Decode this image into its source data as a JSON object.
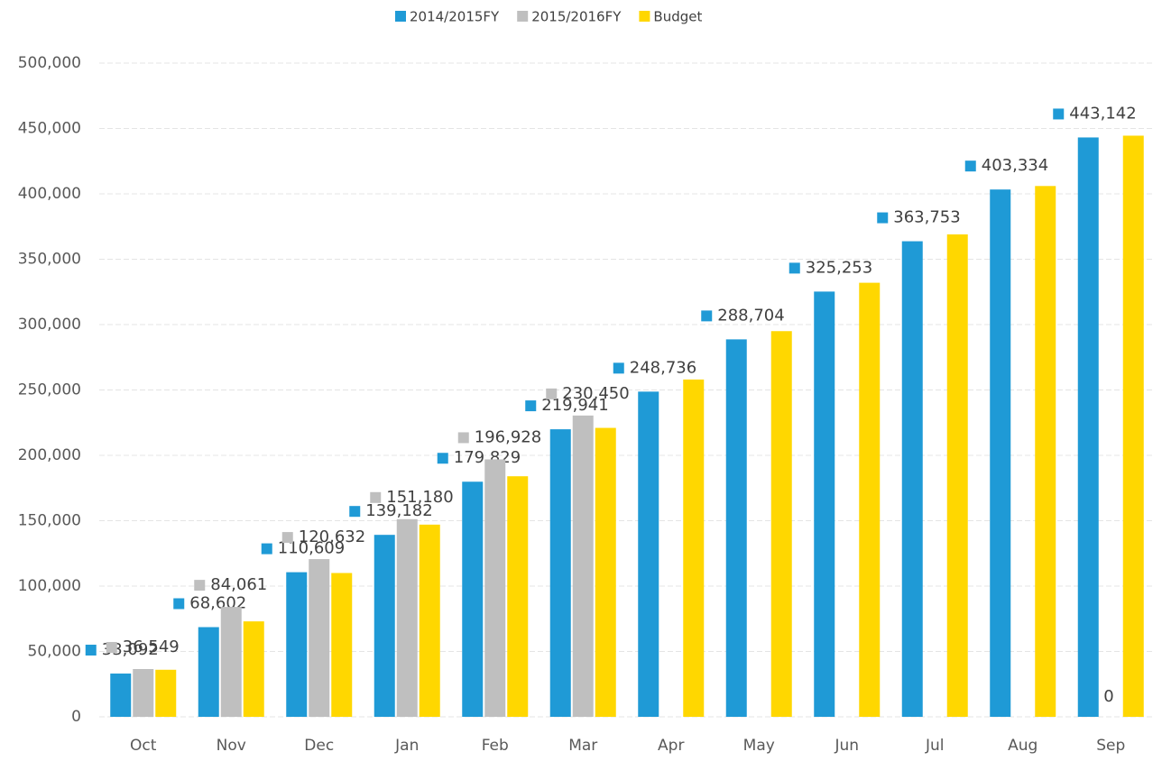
{
  "chart_data": {
    "type": "bar",
    "categories": [
      "Oct",
      "Nov",
      "Dec",
      "Jan",
      "Feb",
      "Mar",
      "Apr",
      "May",
      "Jun",
      "Jul",
      "Aug",
      "Sep"
    ],
    "series": [
      {
        "name": "2014/2015FY",
        "color": "#1f9ad6",
        "values": [
          33092,
          68602,
          110609,
          139182,
          179829,
          219941,
          248736,
          288704,
          325253,
          363753,
          403334,
          443142
        ],
        "value_labels": [
          "33,092",
          "68,602",
          "110,609",
          "139,182",
          "179,829",
          "219,941",
          "248,736",
          "288,704",
          "325,253",
          "363,753",
          "403,334",
          "443,142"
        ]
      },
      {
        "name": "2015/2016FY",
        "color": "#bfbfbf",
        "values": [
          36549,
          84061,
          120632,
          151180,
          196928,
          230450,
          null,
          null,
          null,
          null,
          null,
          0
        ],
        "value_labels": [
          "36,549",
          "84,061",
          "120,632",
          "151,180",
          "196,928",
          "230,450",
          null,
          null,
          null,
          null,
          null,
          "0"
        ]
      },
      {
        "name": "Budget",
        "color": "#ffd700",
        "values": [
          36000,
          73000,
          110000,
          147000,
          184000,
          221000,
          258000,
          295000,
          332000,
          369000,
          406000,
          444500
        ]
      }
    ],
    "ylim": [
      0,
      500000
    ],
    "yticks": [
      0,
      {
        "value": 50000,
        "label": "50,000"
      },
      {
        "value": 100000,
        "label": "100,000"
      },
      {
        "value": 150000,
        "label": "150,000"
      },
      {
        "value": 200000,
        "label": "200,000"
      },
      {
        "value": 250000,
        "label": "250,000"
      },
      {
        "value": 300000,
        "label": "300,000"
      },
      {
        "value": 350000,
        "label": "350,000"
      },
      {
        "value": 400000,
        "label": "400,000"
      },
      {
        "value": 450000,
        "label": "450,000"
      },
      {
        "value": 500000,
        "label": "500,000"
      }
    ],
    "grid": true
  }
}
